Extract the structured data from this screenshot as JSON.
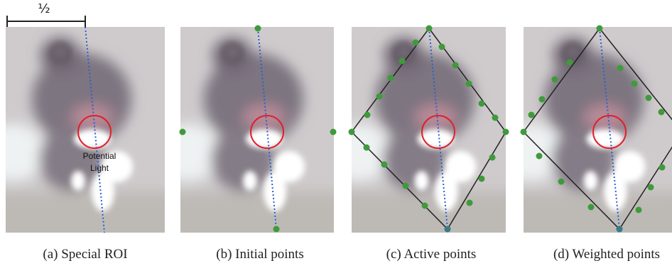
{
  "scale_label": "½",
  "panels": [
    {
      "caption": "(a) Special ROI",
      "annotation": [
        "Potential",
        "Light"
      ]
    },
    {
      "caption": "(b) Initial points"
    },
    {
      "caption": "(c) Active points"
    },
    {
      "caption": "(d) Weighted points"
    }
  ]
}
